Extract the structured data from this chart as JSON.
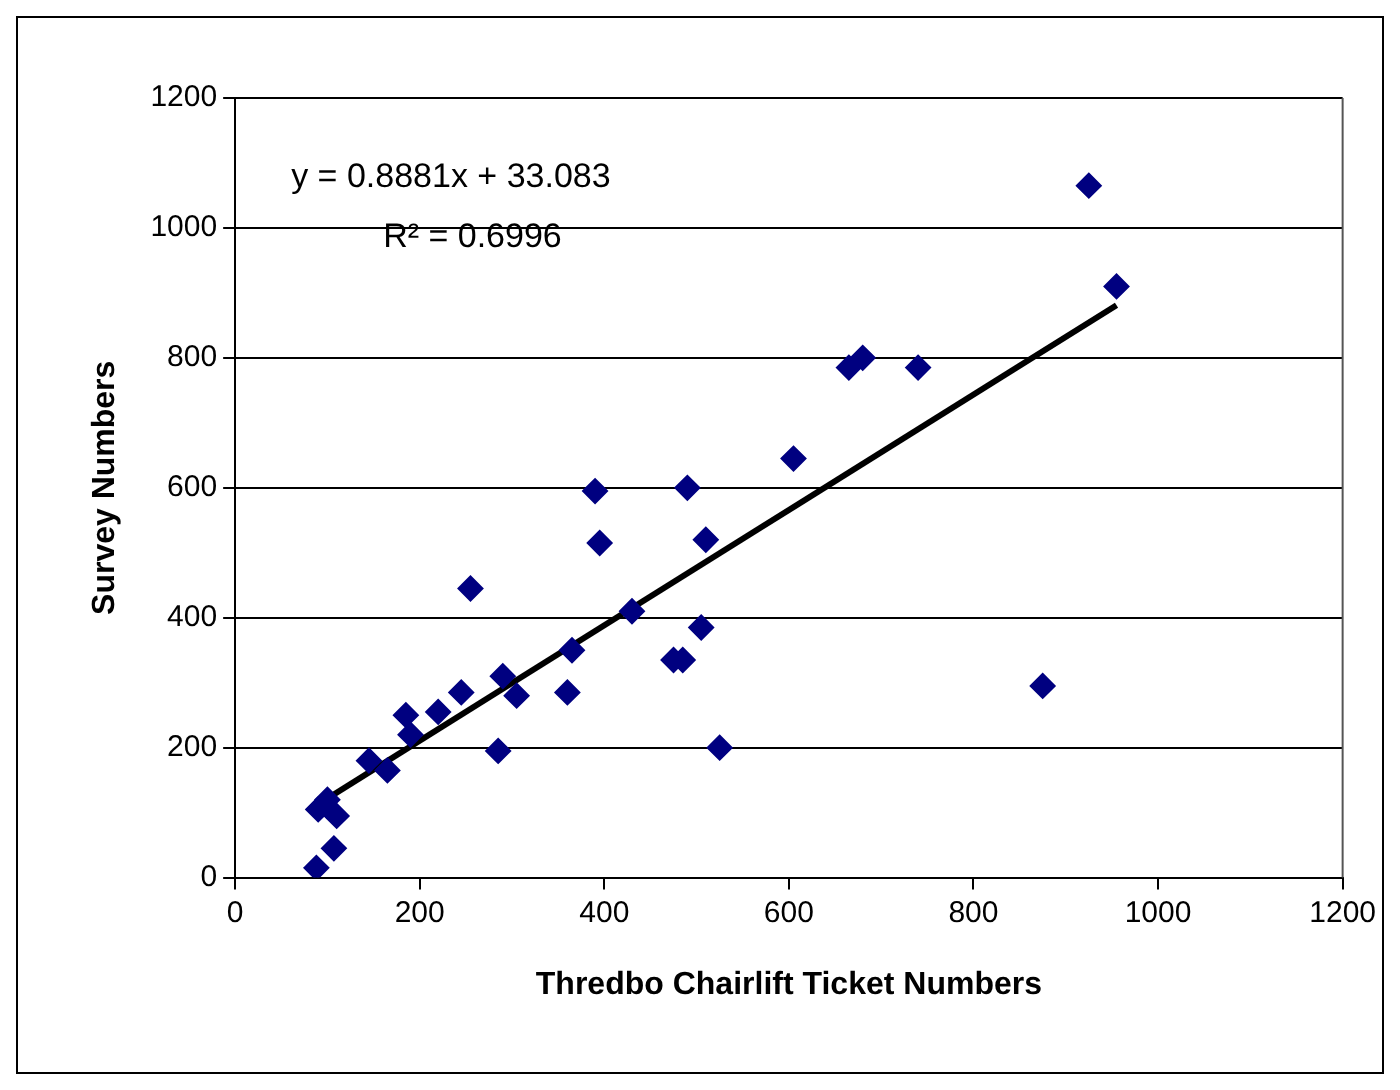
{
  "chart_data": {
    "type": "scatter",
    "xlabel": "Thredbo Chairlift Ticket Numbers",
    "ylabel": "Survey Numbers",
    "annotations": [
      "y = 0.8881x + 33.083",
      "R² = 0.6996"
    ],
    "x": [
      88,
      90,
      100,
      107,
      110,
      145,
      165,
      185,
      190,
      220,
      245,
      255,
      285,
      290,
      305,
      360,
      365,
      390,
      395,
      430,
      475,
      485,
      490,
      505,
      510,
      525,
      605,
      665,
      680,
      740,
      875,
      925,
      955
    ],
    "series": [
      {
        "color": "#000080",
        "marker": "diamond",
        "values": [
          15,
          105,
          120,
          45,
          95,
          180,
          165,
          250,
          220,
          255,
          285,
          445,
          195,
          310,
          280,
          285,
          350,
          595,
          515,
          410,
          335,
          335,
          600,
          385,
          520,
          200,
          645,
          785,
          800,
          785,
          295,
          1065,
          910
        ]
      },
      {
        "type": "line",
        "color": "#000000",
        "marker": "none",
        "x": [
          90,
          955
        ],
        "values": [
          113,
          881
        ]
      }
    ],
    "xlim": [
      0,
      1200
    ],
    "xticks": [
      0,
      200,
      400,
      600,
      800,
      1000,
      1200
    ],
    "ylim": [
      0,
      1200
    ],
    "yticks": [
      0,
      200,
      400,
      600,
      800,
      1000,
      1200
    ],
    "grid": "y",
    "legend": false
  }
}
